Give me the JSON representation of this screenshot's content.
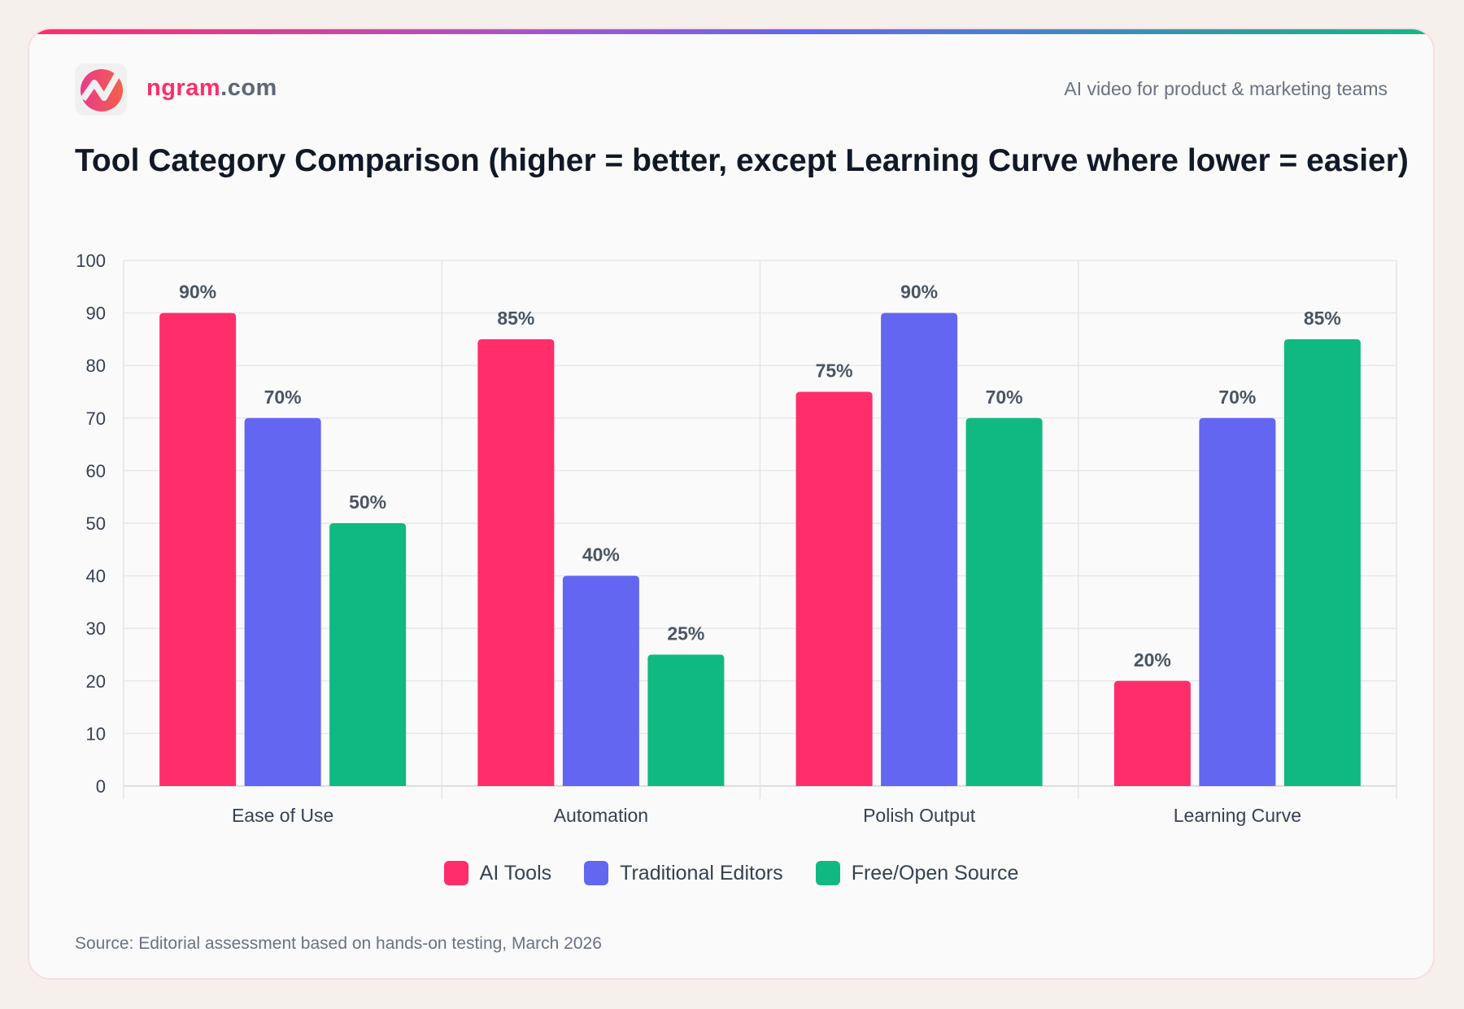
{
  "header": {
    "brand_main": "ngram",
    "brand_suffix": ".com",
    "tagline": "AI video for product & marketing teams"
  },
  "chart_data": {
    "type": "bar",
    "title": "Tool Category Comparison (higher = better, except Learning Curve where lower = easier)",
    "categories": [
      "Ease of Use",
      "Automation",
      "Polish Output",
      "Learning Curve"
    ],
    "series": [
      {
        "name": "AI Tools",
        "color": "#ff2d6a",
        "values": [
          90,
          85,
          75,
          20
        ]
      },
      {
        "name": "Traditional Editors",
        "color": "#6366f1",
        "values": [
          70,
          40,
          90,
          70
        ]
      },
      {
        "name": "Free/Open Source",
        "color": "#10b981",
        "values": [
          50,
          25,
          70,
          85
        ]
      }
    ],
    "ylim": [
      0,
      100
    ],
    "yticks": [
      0,
      10,
      20,
      30,
      40,
      50,
      60,
      70,
      80,
      90,
      100
    ],
    "value_suffix": "%",
    "grid": true,
    "legend": "bottom"
  },
  "source": "Source: Editorial assessment based on hands-on testing, March 2026"
}
